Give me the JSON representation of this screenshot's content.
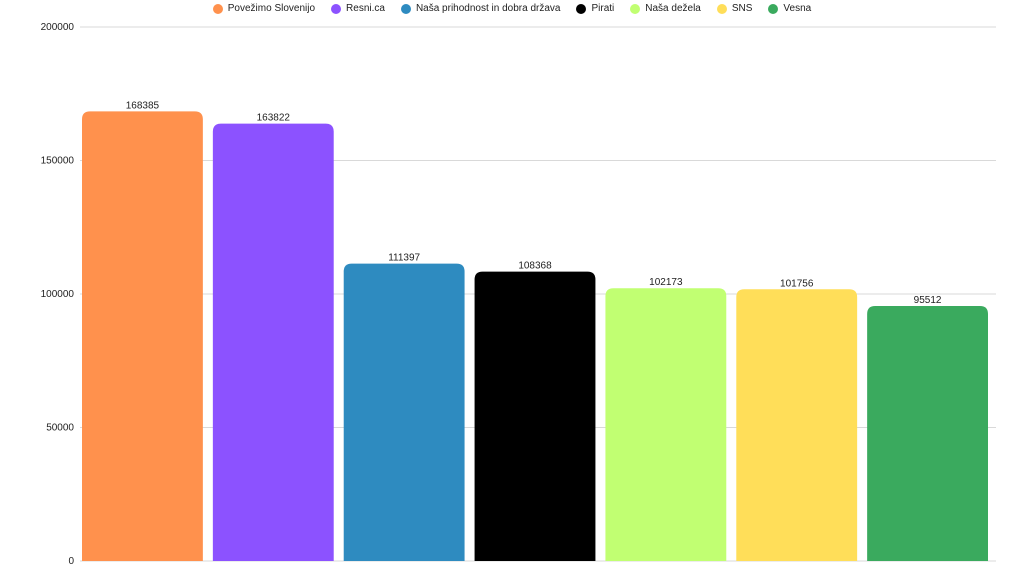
{
  "chart_data": {
    "type": "bar",
    "categories": [
      "Povežimo Slovenijo",
      "Resni.ca",
      "Naša prihodnost in dobra država",
      "Pirati",
      "Naša dežela",
      "SNS",
      "Vesna"
    ],
    "values": [
      168385,
      163822,
      111397,
      108368,
      102173,
      101756,
      95512
    ],
    "data_labels": [
      "168385",
      "163822",
      "111397",
      "108368",
      "102173",
      "101756",
      "95512"
    ],
    "colors": [
      "#FF914D",
      "#8C52FF",
      "#2E8BC0",
      "#000000",
      "#C1FF72",
      "#FFDE59",
      "#3AAA5E"
    ],
    "ylim": [
      0,
      200000
    ],
    "yticks": [
      0,
      50000,
      100000,
      150000,
      200000
    ],
    "ytick_labels": [
      "0",
      "50000",
      "100000",
      "150000",
      "200000"
    ],
    "grid": true,
    "legend_position": "top-center",
    "title": "",
    "xlabel": "",
    "ylabel": ""
  }
}
